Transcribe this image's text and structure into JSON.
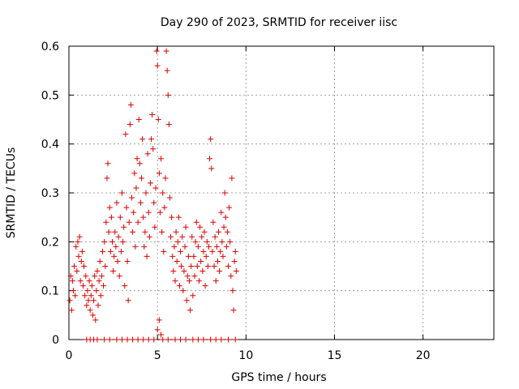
{
  "chart_data": {
    "type": "scatter",
    "title": "Day 290 of 2023, SRMTID for receiver iisc",
    "xlabel": "GPS time / hours",
    "ylabel": "SRMTID / TECUs",
    "xlim": [
      0,
      24
    ],
    "ylim": [
      0,
      0.6
    ],
    "xticks": [
      0,
      5,
      10,
      15,
      20
    ],
    "xtick_labels": [
      "0",
      "5",
      "10",
      "15",
      "20"
    ],
    "yticks": [
      0,
      0.1,
      0.2,
      0.3,
      0.4,
      0.5,
      0.6
    ],
    "ytick_labels": [
      "0",
      "0.1",
      "0.2",
      "0.3",
      "0.4",
      "0.5",
      "0.6"
    ],
    "grid": true,
    "legend": "none",
    "marker": "+",
    "series": [
      {
        "name": "SRMTID",
        "color": "#dd0000",
        "points": [
          [
            0.05,
            0.08
          ],
          [
            0.1,
            0.13
          ],
          [
            0.15,
            0.06
          ],
          [
            0.2,
            0.12
          ],
          [
            0.25,
            0.1
          ],
          [
            0.3,
            0.15
          ],
          [
            0.35,
            0.09
          ],
          [
            0.4,
            0.19
          ],
          [
            0.45,
            0.14
          ],
          [
            0.5,
            0.2
          ],
          [
            0.55,
            0.17
          ],
          [
            0.6,
            0.21
          ],
          [
            0.65,
            0.12
          ],
          [
            0.7,
            0.16
          ],
          [
            0.75,
            0.18
          ],
          [
            0.8,
            0.11
          ],
          [
            0.85,
            0.15
          ],
          [
            0.9,
            0.09
          ],
          [
            0.95,
            0.13
          ],
          [
            1.0,
            0.07
          ],
          [
            1.05,
            0.1
          ],
          [
            1.1,
            0.08
          ],
          [
            1.15,
            0.12
          ],
          [
            1.2,
            0.06
          ],
          [
            1.25,
            0.09
          ],
          [
            1.3,
            0.11
          ],
          [
            1.35,
            0.05
          ],
          [
            1.4,
            0.08
          ],
          [
            1.45,
            0.13
          ],
          [
            1.5,
            0.04
          ],
          [
            1.55,
            0.1
          ],
          [
            1.6,
            0.14
          ],
          [
            1.65,
            0.07
          ],
          [
            1.7,
            0.12
          ],
          [
            1.75,
            0.16
          ],
          [
            1.8,
            0.09
          ],
          [
            1.85,
            0.13
          ],
          [
            1.9,
            0.18
          ],
          [
            1.95,
            0.11
          ],
          [
            2.0,
            0.2
          ],
          [
            2.05,
            0.15
          ],
          [
            2.1,
            0.24
          ],
          [
            2.15,
            0.33
          ],
          [
            2.2,
            0.36
          ],
          [
            2.25,
            0.22
          ],
          [
            2.3,
            0.27
          ],
          [
            2.35,
            0.18
          ],
          [
            2.4,
            0.25
          ],
          [
            2.45,
            0.2
          ],
          [
            2.5,
            0.14
          ],
          [
            2.55,
            0.17
          ],
          [
            2.6,
            0.22
          ],
          [
            2.65,
            0.19
          ],
          [
            2.7,
            0.28
          ],
          [
            2.75,
            0.16
          ],
          [
            2.8,
            0.21
          ],
          [
            2.85,
            0.13
          ],
          [
            2.9,
            0.25
          ],
          [
            2.95,
            0.18
          ],
          [
            3.0,
            0.3
          ],
          [
            3.05,
            0.2
          ],
          [
            3.1,
            0.23
          ],
          [
            3.15,
            0.11
          ],
          [
            3.2,
            0.42
          ],
          [
            3.25,
            0.27
          ],
          [
            3.3,
            0.16
          ],
          [
            3.35,
            0.08
          ],
          [
            3.4,
            0.24
          ],
          [
            3.45,
            0.44
          ],
          [
            3.5,
            0.48
          ],
          [
            3.55,
            0.29
          ],
          [
            3.6,
            0.22
          ],
          [
            3.65,
            0.26
          ],
          [
            3.7,
            0.34
          ],
          [
            3.75,
            0.19
          ],
          [
            3.8,
            0.31
          ],
          [
            3.85,
            0.37
          ],
          [
            3.9,
            0.24
          ],
          [
            3.95,
            0.45
          ],
          [
            4.0,
            0.36
          ],
          [
            4.05,
            0.28
          ],
          [
            4.1,
            0.33
          ],
          [
            4.15,
            0.41
          ],
          [
            4.2,
            0.25
          ],
          [
            4.25,
            0.19
          ],
          [
            4.3,
            0.22
          ],
          [
            4.35,
            0.3
          ],
          [
            4.4,
            0.17
          ],
          [
            4.45,
            0.38
          ],
          [
            4.5,
            0.26
          ],
          [
            4.55,
            0.21
          ],
          [
            4.6,
            0.32
          ],
          [
            4.65,
            0.41
          ],
          [
            4.7,
            0.46
          ],
          [
            4.75,
            0.39
          ],
          [
            4.8,
            0.28
          ],
          [
            4.85,
            0.23
          ],
          [
            4.9,
            0.31
          ],
          [
            4.95,
            0.59
          ],
          [
            5.0,
            0.56
          ],
          [
            5.05,
            0.45
          ],
          [
            5.1,
            0.34
          ],
          [
            5.15,
            0.26
          ],
          [
            5.2,
            0.37
          ],
          [
            5.25,
            0.22
          ],
          [
            5.3,
            0.3
          ],
          [
            5.35,
            0.18
          ],
          [
            5.4,
            0.27
          ],
          [
            5.45,
            0.33
          ],
          [
            5.5,
            0.59
          ],
          [
            5.55,
            0.55
          ],
          [
            5.6,
            0.5
          ],
          [
            5.65,
            0.44
          ],
          [
            5.7,
            0.29
          ],
          [
            5.75,
            0.21
          ],
          [
            5.8,
            0.25
          ],
          [
            5.85,
            0.17
          ],
          [
            5.9,
            0.14
          ],
          [
            5.95,
            0.19
          ],
          [
            6.0,
            0.12
          ],
          [
            6.05,
            0.22
          ],
          [
            6.1,
            0.16
          ],
          [
            6.15,
            0.2
          ],
          [
            6.2,
            0.25
          ],
          [
            6.25,
            0.11
          ],
          [
            6.3,
            0.18
          ],
          [
            6.35,
            0.15
          ],
          [
            6.4,
            0.21
          ],
          [
            6.45,
            0.1
          ],
          [
            6.5,
            0.14
          ],
          [
            6.55,
            0.19
          ],
          [
            6.6,
            0.23
          ],
          [
            6.65,
            0.08
          ],
          [
            6.7,
            0.13
          ],
          [
            6.75,
            0.17
          ],
          [
            6.8,
            0.12
          ],
          [
            6.85,
            0.06
          ],
          [
            6.9,
            0.15
          ],
          [
            6.95,
            0.21
          ],
          [
            7.0,
            0.09
          ],
          [
            7.05,
            0.17
          ],
          [
            7.1,
            0.13
          ],
          [
            7.15,
            0.2
          ],
          [
            7.2,
            0.24
          ],
          [
            7.25,
            0.15
          ],
          [
            7.3,
            0.19
          ],
          [
            7.35,
            0.12
          ],
          [
            7.4,
            0.23
          ],
          [
            7.45,
            0.16
          ],
          [
            7.5,
            0.21
          ],
          [
            7.55,
            0.14
          ],
          [
            7.6,
            0.18
          ],
          [
            7.65,
            0.22
          ],
          [
            7.7,
            0.11
          ],
          [
            7.75,
            0.17
          ],
          [
            7.8,
            0.2
          ],
          [
            7.85,
            0.15
          ],
          [
            7.9,
            0.19
          ],
          [
            7.95,
            0.37
          ],
          [
            8.0,
            0.41
          ],
          [
            8.05,
            0.35
          ],
          [
            8.1,
            0.18
          ],
          [
            8.15,
            0.24
          ],
          [
            8.2,
            0.15
          ],
          [
            8.25,
            0.21
          ],
          [
            8.3,
            0.12
          ],
          [
            8.35,
            0.19
          ],
          [
            8.4,
            0.16
          ],
          [
            8.45,
            0.22
          ],
          [
            8.5,
            0.14
          ],
          [
            8.55,
            0.18
          ],
          [
            8.6,
            0.26
          ],
          [
            8.65,
            0.2
          ],
          [
            8.7,
            0.17
          ],
          [
            8.75,
            0.23
          ],
          [
            8.8,
            0.3
          ],
          [
            8.85,
            0.25
          ],
          [
            8.9,
            0.19
          ],
          [
            8.95,
            0.22
          ],
          [
            9.0,
            0.15
          ],
          [
            9.05,
            0.27
          ],
          [
            9.1,
            0.2
          ],
          [
            9.15,
            0.13
          ],
          [
            9.2,
            0.33
          ],
          [
            9.25,
            0.1
          ],
          [
            9.3,
            0.06
          ],
          [
            9.35,
            0.16
          ],
          [
            9.4,
            0.18
          ],
          [
            9.45,
            0.14
          ],
          [
            1.0,
            0.0
          ],
          [
            1.2,
            0.0
          ],
          [
            1.4,
            0.0
          ],
          [
            1.6,
            0.0
          ],
          [
            2.0,
            0.0
          ],
          [
            2.3,
            0.0
          ],
          [
            2.7,
            0.0
          ],
          [
            3.0,
            0.0
          ],
          [
            3.3,
            0.0
          ],
          [
            3.6,
            0.0
          ],
          [
            3.9,
            0.0
          ],
          [
            4.2,
            0.0
          ],
          [
            4.5,
            0.0
          ],
          [
            4.8,
            0.0
          ],
          [
            5.0,
            0.02
          ],
          [
            5.1,
            0.04
          ],
          [
            5.2,
            0.01
          ],
          [
            5.3,
            0.0
          ],
          [
            5.6,
            0.0
          ],
          [
            6.0,
            0.0
          ],
          [
            6.3,
            0.0
          ],
          [
            6.6,
            0.0
          ],
          [
            7.0,
            0.0
          ],
          [
            7.3,
            0.0
          ],
          [
            7.6,
            0.0
          ],
          [
            8.0,
            0.0
          ],
          [
            8.3,
            0.0
          ],
          [
            8.6,
            0.0
          ],
          [
            9.0,
            0.0
          ],
          [
            9.4,
            0.0
          ]
        ]
      }
    ]
  }
}
